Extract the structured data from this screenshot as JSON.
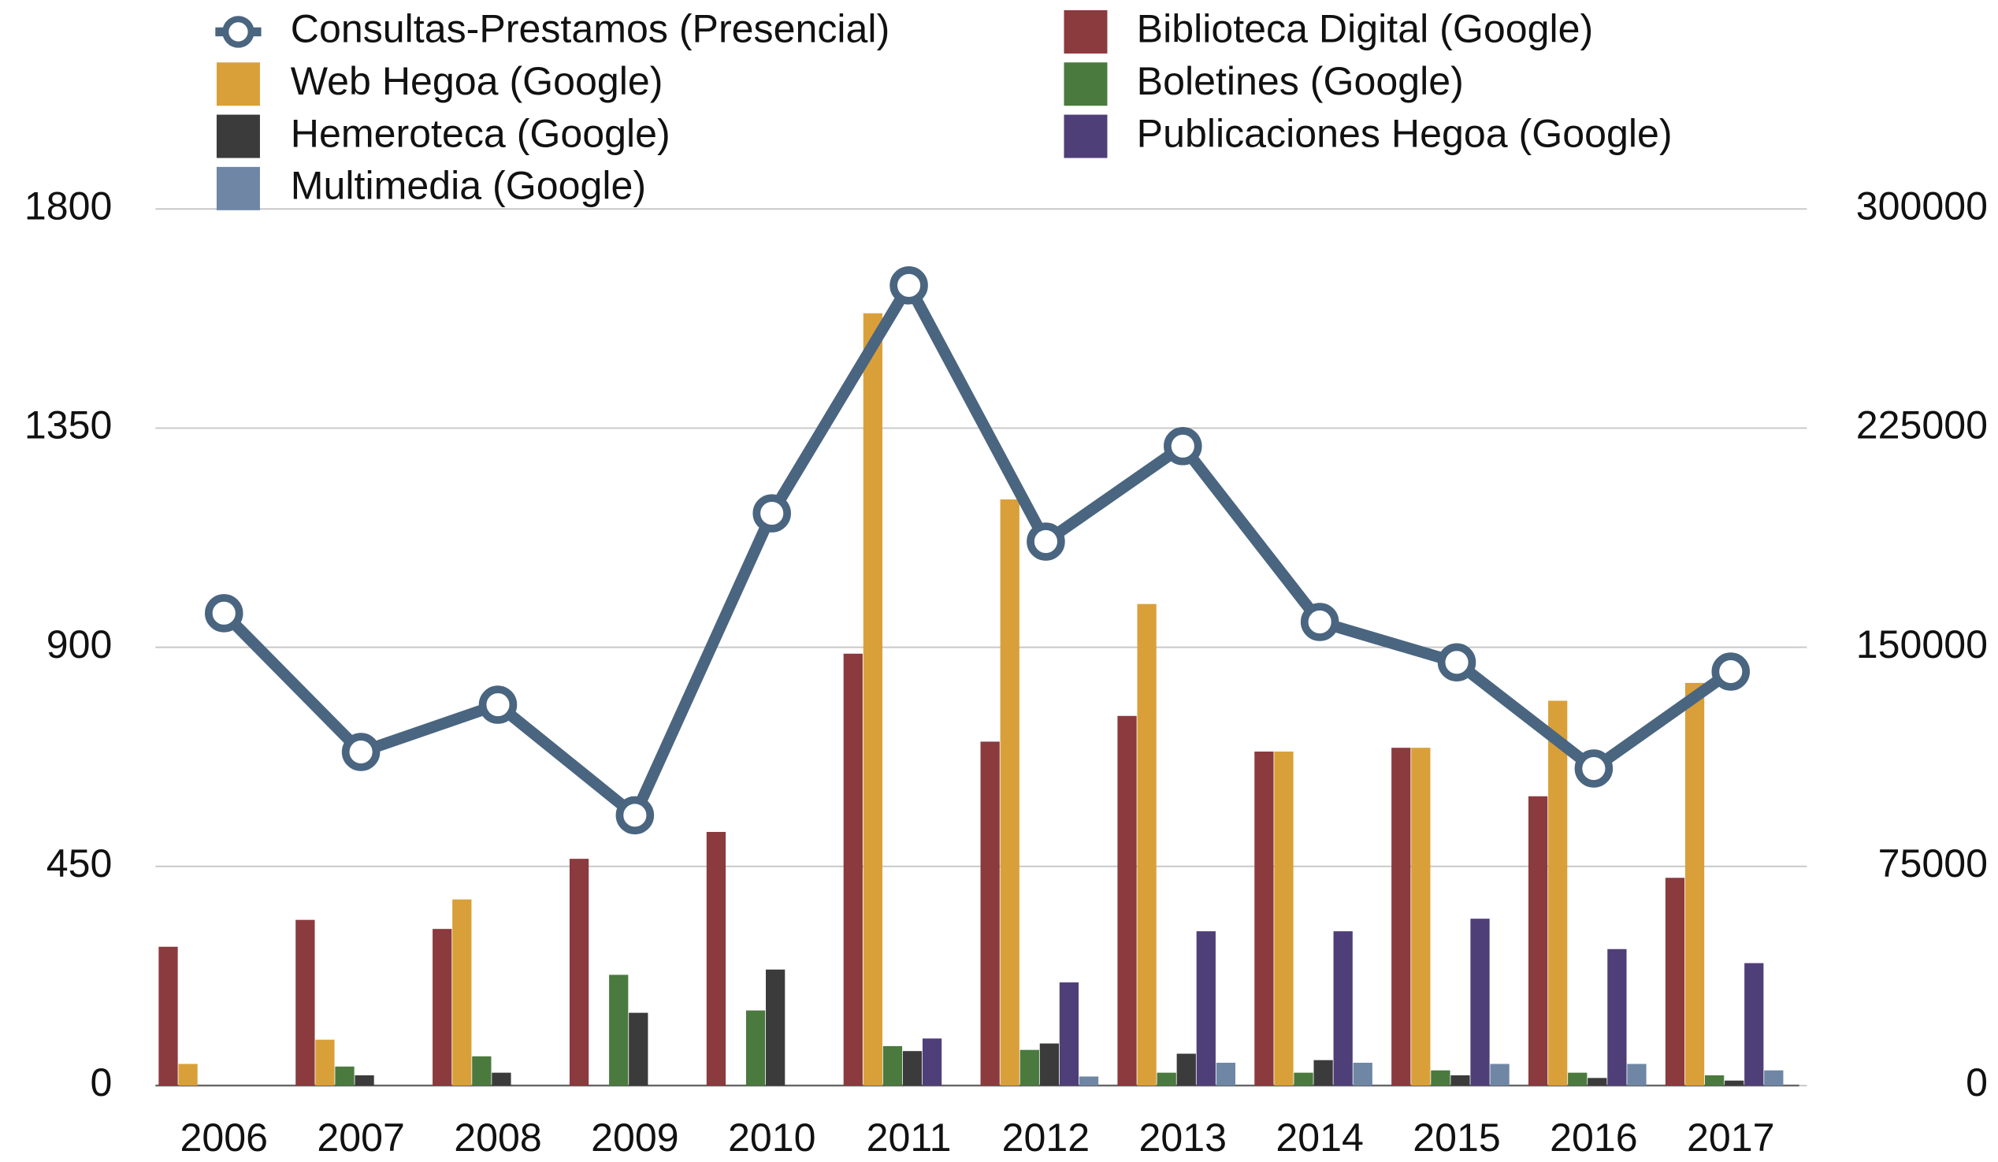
{
  "chart_data": {
    "type": "combo",
    "categories": [
      "2006",
      "2007",
      "2008",
      "2009",
      "2010",
      "2011",
      "2012",
      "2013",
      "2014",
      "2015",
      "2016",
      "2017"
    ],
    "ylim": [
      0,
      1800
    ],
    "yticks": [
      0,
      450,
      900,
      1350,
      1800
    ],
    "y2lim": [
      0,
      300000
    ],
    "y2ticks": [
      0,
      75000,
      150000,
      225000,
      300000
    ],
    "grid": true,
    "legend": "top",
    "series": [
      {
        "name": "Consultas-Prestamos (Presencial)",
        "type": "line",
        "color": "#4a6580",
        "axis": "y",
        "values": [
          970,
          685,
          782,
          555,
          1175,
          1643,
          1117,
          1313,
          952,
          869,
          651,
          850
        ]
      },
      {
        "name": "Biblioteca Digital (Google)",
        "type": "bar",
        "color": "#8b3a3e",
        "axis": "y2",
        "values": [
          47500,
          56700,
          53600,
          77600,
          86800,
          147800,
          117700,
          126500,
          114300,
          115600,
          99000,
          71100
        ]
      },
      {
        "name": "Web Hegoa (Google)",
        "type": "bar",
        "color": "#d9a03a",
        "axis": "y2",
        "values": [
          7400,
          15700,
          63700,
          0,
          0,
          264300,
          200600,
          164800,
          114300,
          115600,
          131700,
          137800
        ]
      },
      {
        "name": "Boletines (Google)",
        "type": "bar",
        "color": "#4a7a3e",
        "axis": "y2",
        "values": [
          0,
          6500,
          10000,
          37900,
          25700,
          13500,
          12200,
          4400,
          4400,
          5200,
          4400,
          3500
        ]
      },
      {
        "name": "Hemeroteca (Google)",
        "type": "bar",
        "color": "#3b3b3b",
        "axis": "y2",
        "values": [
          0,
          3500,
          4400,
          24900,
          39700,
          11800,
          14400,
          10900,
          8700,
          3500,
          2600,
          1700
        ]
      },
      {
        "name": "Publicaciones Hegoa (Google)",
        "type": "bar",
        "color": "#4f3f78",
        "axis": "y2",
        "values": [
          0,
          0,
          0,
          0,
          0,
          16100,
          35300,
          52800,
          52800,
          57100,
          46700,
          41900
        ]
      },
      {
        "name": "Multimedia (Google)",
        "type": "bar",
        "color": "#6f87a5",
        "axis": "y2",
        "values": [
          0,
          0,
          0,
          0,
          0,
          0,
          3100,
          7800,
          7800,
          7400,
          7400,
          5200
        ]
      }
    ]
  }
}
